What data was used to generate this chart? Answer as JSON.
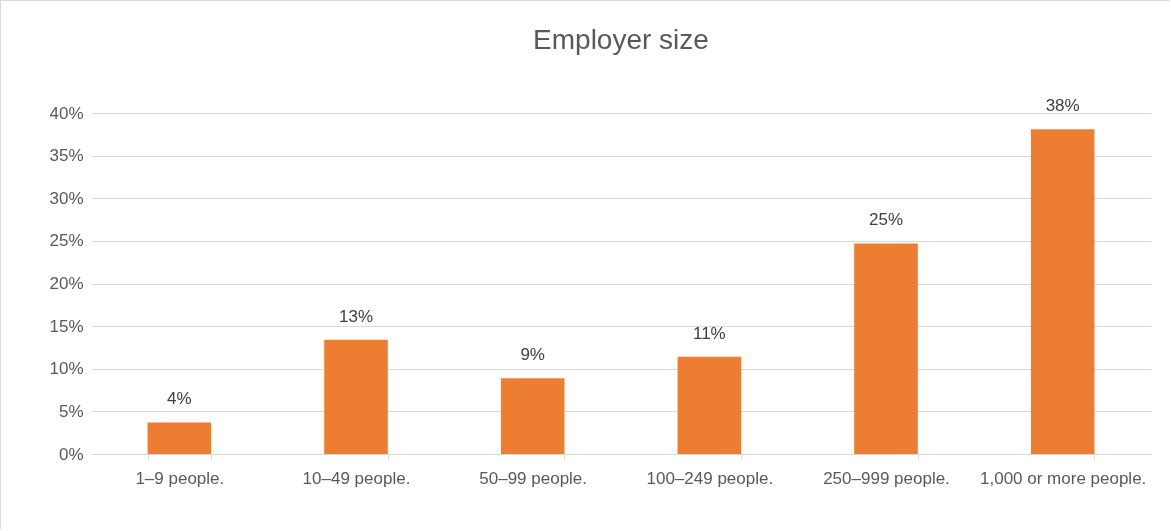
{
  "chart_data": {
    "type": "bar",
    "title": "Employer size",
    "categories": [
      "1–9 people.",
      "10–49 people.",
      "50–99 people.",
      "100–249 people.",
      "250–999 people.",
      "1,000 or more people."
    ],
    "values": [
      3.7,
      13.4,
      8.9,
      11.4,
      24.7,
      38.1
    ],
    "value_labels": [
      "4%",
      "13%",
      "9%",
      "11%",
      "25%",
      "38%"
    ],
    "color": "#ed7d31",
    "ylim": [
      0,
      40
    ],
    "yticks": [
      {
        "value": 0,
        "label": "0%"
      },
      {
        "value": 5,
        "label": "5%"
      },
      {
        "value": 10,
        "label": "10%"
      },
      {
        "value": 15,
        "label": "15%"
      },
      {
        "value": 20,
        "label": "20%"
      },
      {
        "value": 25,
        "label": "25%"
      },
      {
        "value": 30,
        "label": "30%"
      },
      {
        "value": 35,
        "label": "35%"
      },
      {
        "value": 40,
        "label": "40%"
      }
    ],
    "grid": true
  }
}
